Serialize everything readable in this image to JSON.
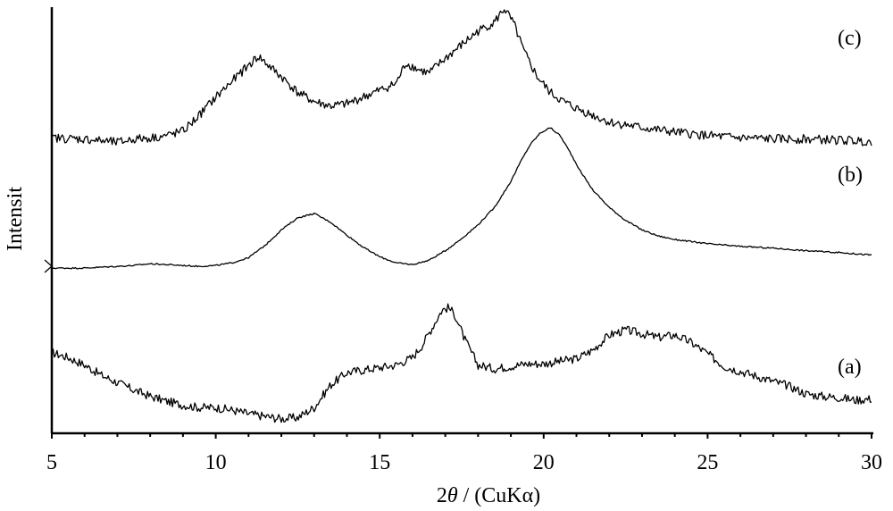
{
  "chart_data": {
    "type": "line",
    "title": "",
    "xlabel_prefix": "2",
    "xlabel_symbol": "θ",
    "xlabel_suffix": " / (CuKα)",
    "ylabel": "Intensit",
    "xlim": [
      5,
      30
    ],
    "x_ticks": [
      5,
      10,
      15,
      20,
      25,
      30
    ],
    "grid": false,
    "legend": "none",
    "y_units": "arbitrary (vertically offset traces)",
    "series": [
      {
        "name": "(a)",
        "color": "#000000",
        "x": [
          5,
          5.5,
          6,
          6.5,
          7,
          7.5,
          8,
          8.5,
          9,
          9.5,
          10,
          10.5,
          11,
          11.5,
          12,
          12.5,
          13,
          13.5,
          14,
          14.5,
          15,
          15.5,
          16,
          16.3,
          16.6,
          16.9,
          17.1,
          17.3,
          17.6,
          18,
          18.5,
          19,
          19.5,
          20,
          20.5,
          21,
          21.5,
          22,
          22.5,
          23,
          23.5,
          24,
          24.5,
          25,
          25.5,
          26,
          26.5,
          27,
          27.5,
          28,
          28.5,
          29,
          29.5,
          30
        ],
        "y": [
          0.56,
          0.52,
          0.46,
          0.38,
          0.32,
          0.26,
          0.21,
          0.17,
          0.14,
          0.12,
          0.12,
          0.1,
          0.07,
          0.05,
          0.03,
          0.04,
          0.12,
          0.3,
          0.4,
          0.42,
          0.44,
          0.46,
          0.52,
          0.62,
          0.76,
          0.9,
          0.92,
          0.86,
          0.66,
          0.46,
          0.43,
          0.45,
          0.47,
          0.47,
          0.49,
          0.51,
          0.58,
          0.7,
          0.74,
          0.71,
          0.68,
          0.7,
          0.64,
          0.55,
          0.45,
          0.41,
          0.37,
          0.33,
          0.29,
          0.23,
          0.21,
          0.2,
          0.18,
          0.19
        ]
      },
      {
        "name": "(b)",
        "color": "#000000",
        "x": [
          5,
          6,
          7,
          7.5,
          8,
          8.5,
          9,
          9.5,
          10,
          10.5,
          11,
          11.5,
          12,
          12.5,
          13,
          13.5,
          14,
          14.5,
          15,
          15.5,
          16,
          16.5,
          17,
          17.5,
          18,
          18.5,
          19,
          19.3,
          19.6,
          19.9,
          20.2,
          20.5,
          20.8,
          21.1,
          21.5,
          22,
          22.5,
          23,
          23.5,
          24,
          25,
          26,
          27,
          28,
          29,
          30
        ],
        "y": [
          0.02,
          0.02,
          0.04,
          0.05,
          0.07,
          0.06,
          0.05,
          0.04,
          0.05,
          0.08,
          0.14,
          0.28,
          0.46,
          0.6,
          0.65,
          0.55,
          0.4,
          0.26,
          0.15,
          0.08,
          0.06,
          0.11,
          0.22,
          0.36,
          0.52,
          0.72,
          1.02,
          1.25,
          1.45,
          1.58,
          1.64,
          1.55,
          1.36,
          1.15,
          0.92,
          0.72,
          0.57,
          0.46,
          0.39,
          0.35,
          0.3,
          0.27,
          0.25,
          0.22,
          0.2,
          0.17
        ]
      },
      {
        "name": "(c)",
        "color": "#000000",
        "x": [
          5,
          6,
          7,
          7.5,
          8,
          8.5,
          9,
          9.5,
          10,
          10.5,
          11,
          11.3,
          11.6,
          12,
          12.5,
          13,
          13.5,
          14,
          14.5,
          15,
          15.5,
          15.8,
          16.2,
          16.5,
          17,
          17.5,
          18,
          18.5,
          18.8,
          19.1,
          19.4,
          19.8,
          20.2,
          20.6,
          21,
          21.5,
          22,
          23,
          24,
          25,
          26,
          27,
          28,
          29,
          30
        ],
        "y": [
          0.06,
          0.05,
          0.02,
          0.05,
          0.06,
          0.08,
          0.12,
          0.26,
          0.42,
          0.56,
          0.7,
          0.78,
          0.7,
          0.6,
          0.46,
          0.38,
          0.34,
          0.36,
          0.42,
          0.48,
          0.54,
          0.72,
          0.66,
          0.63,
          0.76,
          0.88,
          1.0,
          1.08,
          1.2,
          1.06,
          0.82,
          0.6,
          0.46,
          0.38,
          0.32,
          0.26,
          0.2,
          0.15,
          0.11,
          0.08,
          0.06,
          0.05,
          0.05,
          0.04,
          0.03
        ]
      }
    ]
  }
}
